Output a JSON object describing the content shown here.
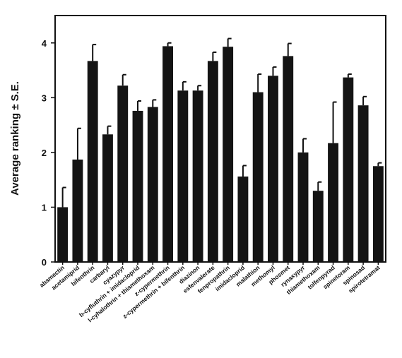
{
  "chart_data": {
    "type": "bar",
    "title": "",
    "xlabel": "",
    "ylabel": "Average ranking ± S.E.",
    "ylim": [
      0,
      4.5
    ],
    "yticks": [
      0,
      1,
      2,
      3,
      4
    ],
    "grid": false,
    "bar_color": "#141414",
    "categories": [
      "abamectin",
      "acetamiprid",
      "bifenthrin",
      "carbaryl",
      "cyazypyr",
      "b-cyfluthrin + imidacloprid",
      "l-cyhalothrin + thiamethoxam",
      "z-cypermethrin",
      "z-cypermethrin + bifenthrin",
      "diazinon",
      "esfenvalerate",
      "fenpropathrin",
      "imidacloprid",
      "malathion",
      "methomyl",
      "phosmet",
      "rynaxypyr",
      "thiamethoxam",
      "tolfenpyrad",
      "spinetoram",
      "spinosad",
      "spirotetramat"
    ],
    "values": [
      1.0,
      1.87,
      3.67,
      2.33,
      3.22,
      2.76,
      2.83,
      3.94,
      3.13,
      3.13,
      3.67,
      3.93,
      1.56,
      3.1,
      3.4,
      3.76,
      2.0,
      1.3,
      2.17,
      3.37,
      2.86,
      1.75
    ],
    "errors": [
      0.36,
      0.57,
      0.3,
      0.15,
      0.2,
      0.18,
      0.13,
      0.06,
      0.16,
      0.09,
      0.16,
      0.15,
      0.2,
      0.33,
      0.16,
      0.23,
      0.25,
      0.16,
      0.75,
      0.06,
      0.16,
      0.06
    ]
  }
}
